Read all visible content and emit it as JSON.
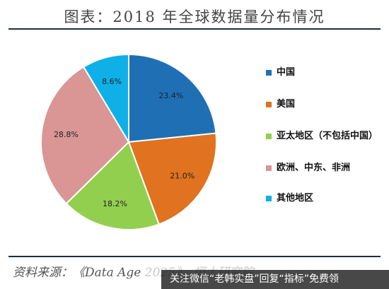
{
  "title": "图表：2018 年全球数据量分布情况",
  "chart_data": {
    "type": "pie",
    "categories": [
      "中国",
      "美国",
      "亚太地区（不包括中国）",
      "欧洲、中东、非洲",
      "其他地区"
    ],
    "values": [
      23.4,
      21.0,
      18.2,
      28.8,
      8.6
    ],
    "data_labels": [
      "23.4%",
      "21.0%",
      "18.2%",
      "28.8%",
      "8.6%"
    ],
    "colors": [
      "#1f6fb5",
      "#e07220",
      "#92cf4f",
      "#d99694",
      "#0fb0e8"
    ],
    "legend_position": "right"
  },
  "legend": {
    "items": [
      "中国",
      "美国",
      "亚太地区（不包括中国）",
      "欧洲、中东、非洲",
      "其他地区"
    ]
  },
  "source": {
    "visible": "资料来源：《Data Age",
    "faded": " 2025》，恒大研究院"
  },
  "banner": {
    "text": "关注微信“老韩实盘”回复“指标”免费领"
  }
}
